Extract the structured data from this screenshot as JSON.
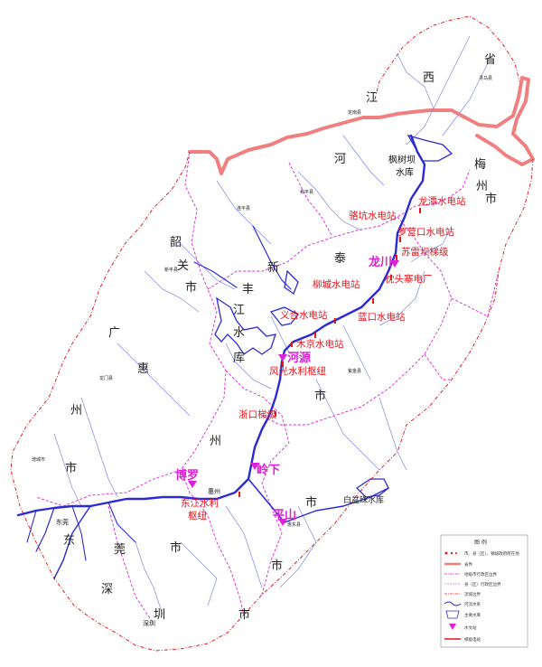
{
  "colors": {
    "river": "#2b2bd6",
    "river_thin": "#7f86e6",
    "province_border": "#f08080",
    "basin_border": "#e0202a",
    "county_border": "#e020d8",
    "station": "#e8141b",
    "city": "#e020d8"
  },
  "regions": {
    "sheng": "省",
    "xi": "西",
    "jiang": "江",
    "he": "河",
    "shao": "韶",
    "guan": "关",
    "shi1": "市",
    "guang": "广",
    "hui": "惠",
    "zhou1": "州",
    "shi2": "市",
    "xin": "新",
    "feng": "丰",
    "jiang2": "江",
    "shui": "水",
    "ku": "库",
    "shi3": "市",
    "zhou2": "州",
    "shi4": "市",
    "dong": "东",
    "guan2": "莞",
    "shen": "深",
    "zhen": "圳",
    "shi5": "市",
    "mei": "梅",
    "zhou3": "州",
    "shi6": "市",
    "tai": "泰",
    "shi7": "市",
    "baipenzhu": "白盆珠水库",
    "shi8": "市"
  },
  "stations": {
    "fengshuba": "枫树坝",
    "fengshuba2": "水库",
    "longtan": "龙潭水电站",
    "luokeng": "骆坑水电站",
    "luoyingkou": "罗营口水电站",
    "sulei": "苏雷坝梯级",
    "zhentou": "枕头寨电厂",
    "liucheng": "柳城水电站",
    "yihe": "义合水电站",
    "lankou": "蓝口水电站",
    "mujing": "木京水电站",
    "fengguang": "风光水利枢纽",
    "kekou": "浙口梯级",
    "dongjiang_hub": "东江水利",
    "dongjiang_hub2": "枢纽"
  },
  "cities": {
    "longchuan": "龙川",
    "heyuan": "河源",
    "boluo": "博罗",
    "lingxia": "岭下",
    "pingshan": "平山"
  },
  "small_places": {
    "xunwu": "寻乌县",
    "dingnan": "定南县",
    "heping": "和平县",
    "lianping": "连平县",
    "xinfeng": "新丰县",
    "longmen": "龙门县",
    "zijin": "紫金县",
    "huidong": "惠东县",
    "dongguan": "东莞",
    "shenzhen": "深圳",
    "zengcheng": "增城市",
    "huizhou": "惠州"
  },
  "legend": {
    "title": "图  例",
    "items": [
      "市、县（区）、镇级政府所在地",
      "省界",
      "地级市行政区边界",
      "县（区）行政区边界",
      "流域边界",
      "河流水系",
      "主要水库",
      "水文站",
      "梯级电站"
    ]
  }
}
